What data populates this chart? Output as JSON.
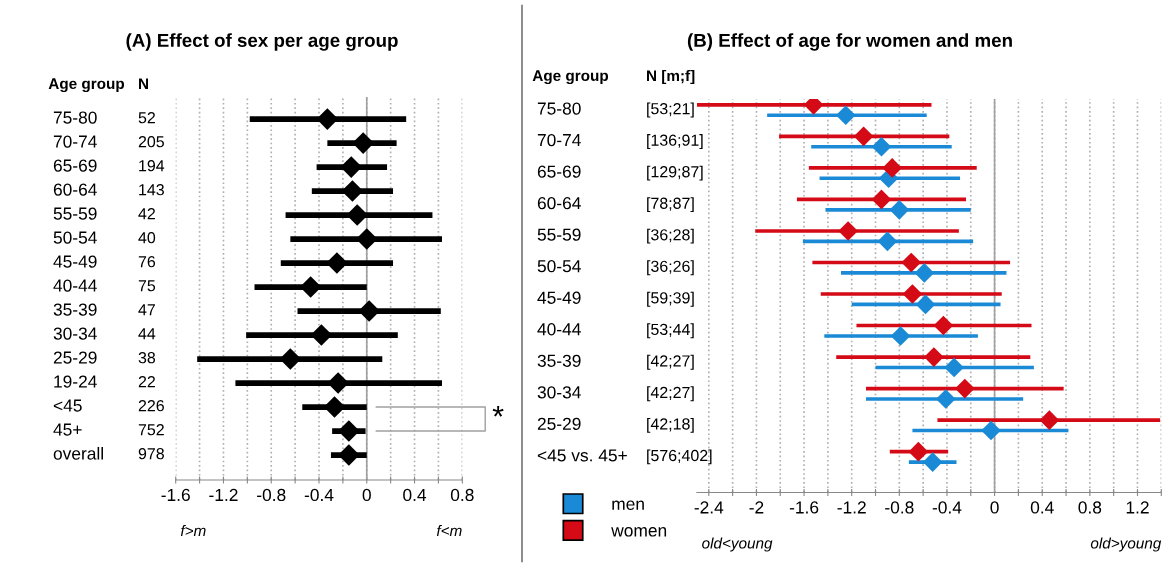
{
  "chart_data": [
    {
      "type": "scatter",
      "orientation": "horizontal",
      "title": "(A) Effect of sex per age group",
      "categories": [
        "75-80",
        "70-74",
        "65-69",
        "60-64",
        "55-59",
        "50-54",
        "45-49",
        "40-44",
        "35-39",
        "30-34",
        "25-29",
        "19-24",
        "<45",
        "45+",
        "overall"
      ],
      "y2_categories": [
        "52",
        "205",
        "194",
        "143",
        "42",
        "40",
        "76",
        "75",
        "47",
        "44",
        "38",
        "22",
        "226",
        "752",
        "978"
      ],
      "series": [
        {
          "color": "#000000",
          "values": [
            -0.33,
            -0.03,
            -0.13,
            -0.12,
            -0.08,
            0.0,
            -0.25,
            -0.47,
            0.02,
            -0.38,
            -0.64,
            -0.24,
            -0.27,
            -0.15,
            -0.15
          ],
          "errors": [
            [
              -0.98,
              0.33
            ],
            [
              -0.33,
              0.25
            ],
            [
              -0.42,
              0.17
            ],
            [
              -0.46,
              0.22
            ],
            [
              -0.68,
              0.55
            ],
            [
              -0.64,
              0.63
            ],
            [
              -0.72,
              0.22
            ],
            [
              -0.94,
              0.0
            ],
            [
              -0.58,
              0.62
            ],
            [
              -1.01,
              0.26
            ],
            [
              -1.42,
              0.13
            ],
            [
              -1.1,
              0.63
            ],
            [
              -0.54,
              0.0
            ],
            [
              -0.29,
              -0.01
            ],
            [
              -0.3,
              0.0
            ]
          ]
        }
      ],
      "xlim": [
        -1.6,
        0.8
      ],
      "xticks": [
        -1.6,
        {
          "value": -1.4,
          "label": null
        },
        -1.2,
        {
          "value": -1.0,
          "label": null
        },
        -0.8,
        {
          "value": -0.6,
          "label": null
        },
        -0.4,
        {
          "value": -0.2,
          "label": null
        },
        0,
        {
          "value": 0.2,
          "label": null
        },
        0.4,
        {
          "value": 0.6,
          "label": null
        },
        0.8
      ],
      "grid": "x",
      "marker": "diamond",
      "line_style": "solid",
      "ref_lines": [
        {
          "axis": "x",
          "value": 0,
          "color": "#a0a0a0"
        }
      ],
      "annotations": [
        "Age group",
        "N",
        "f>m",
        "f<m",
        "*"
      ]
    },
    {
      "type": "scatter",
      "orientation": "horizontal",
      "title": "(B) Effect of age for women and men",
      "categories": [
        "75-80",
        "70-74",
        "65-69",
        "60-64",
        "55-59",
        "50-54",
        "45-49",
        "40-44",
        "35-39",
        "30-34",
        "25-29",
        "<45 vs. 45+"
      ],
      "y2_categories": [
        "[53;21]",
        "[136;91]",
        "[129;87]",
        "[78;87]",
        "[36;28]",
        "[36;26]",
        "[59;39]",
        "[53;44]",
        "[42;27]",
        "[42;27]",
        "[42;18]",
        "[576;402]"
      ],
      "series": [
        {
          "name": "men",
          "color": "#1a8ad6",
          "values": [
            -1.25,
            -0.95,
            -0.89,
            -0.8,
            -0.9,
            -0.59,
            -0.58,
            -0.79,
            -0.34,
            -0.41,
            -0.03,
            -0.52
          ],
          "errors": [
            [
              -1.91,
              -0.57
            ],
            [
              -1.54,
              -0.36
            ],
            [
              -1.47,
              -0.29
            ],
            [
              -1.42,
              -0.2
            ],
            [
              -1.61,
              -0.18
            ],
            [
              -1.29,
              0.1
            ],
            [
              -1.2,
              0.05
            ],
            [
              -1.43,
              -0.14
            ],
            [
              -1.0,
              0.33
            ],
            [
              -1.08,
              0.24
            ],
            [
              -0.69,
              0.62
            ],
            [
              -0.72,
              -0.32
            ]
          ]
        },
        {
          "name": "women",
          "color": "#d40a16",
          "values": [
            -1.52,
            -1.1,
            -0.86,
            -0.95,
            -1.23,
            -0.7,
            -0.69,
            -0.43,
            -0.51,
            -0.25,
            0.46,
            -0.64
          ],
          "errors": [
            [
              -2.5,
              -0.53
            ],
            [
              -1.81,
              -0.38
            ],
            [
              -1.56,
              -0.15
            ],
            [
              -1.66,
              -0.24
            ],
            [
              -2.01,
              -0.3
            ],
            [
              -1.53,
              0.13
            ],
            [
              -1.46,
              0.06
            ],
            [
              -1.16,
              0.31
            ],
            [
              -1.33,
              0.3
            ],
            [
              -1.08,
              0.58
            ],
            [
              -0.48,
              1.39
            ],
            [
              -0.88,
              -0.39
            ]
          ]
        }
      ],
      "xlim": [
        -2.5,
        1.4
      ],
      "xticks": [
        -2.4,
        {
          "value": -2.2,
          "label": null
        },
        -2,
        {
          "value": -1.8,
          "label": null
        },
        -1.6,
        {
          "value": -1.4,
          "label": null
        },
        -1.2,
        {
          "value": -1.0,
          "label": null
        },
        -0.8,
        {
          "value": -0.6,
          "label": null
        },
        -0.4,
        {
          "value": -0.2,
          "label": null
        },
        0,
        {
          "value": 0.2,
          "label": null
        },
        0.4,
        {
          "value": 0.6,
          "label": null
        },
        0.8,
        {
          "value": 1.0,
          "label": null
        },
        1.2,
        {
          "value": 1.4,
          "label": null
        }
      ],
      "grid": "x",
      "marker": "diamond",
      "line_style": "solid",
      "legend": "bottom left",
      "ref_lines": [
        {
          "axis": "x",
          "value": 0,
          "color": "#a0a0a0"
        }
      ],
      "annotations": [
        "Age group",
        "N [m;f]",
        "old<young",
        "old>young"
      ]
    }
  ]
}
